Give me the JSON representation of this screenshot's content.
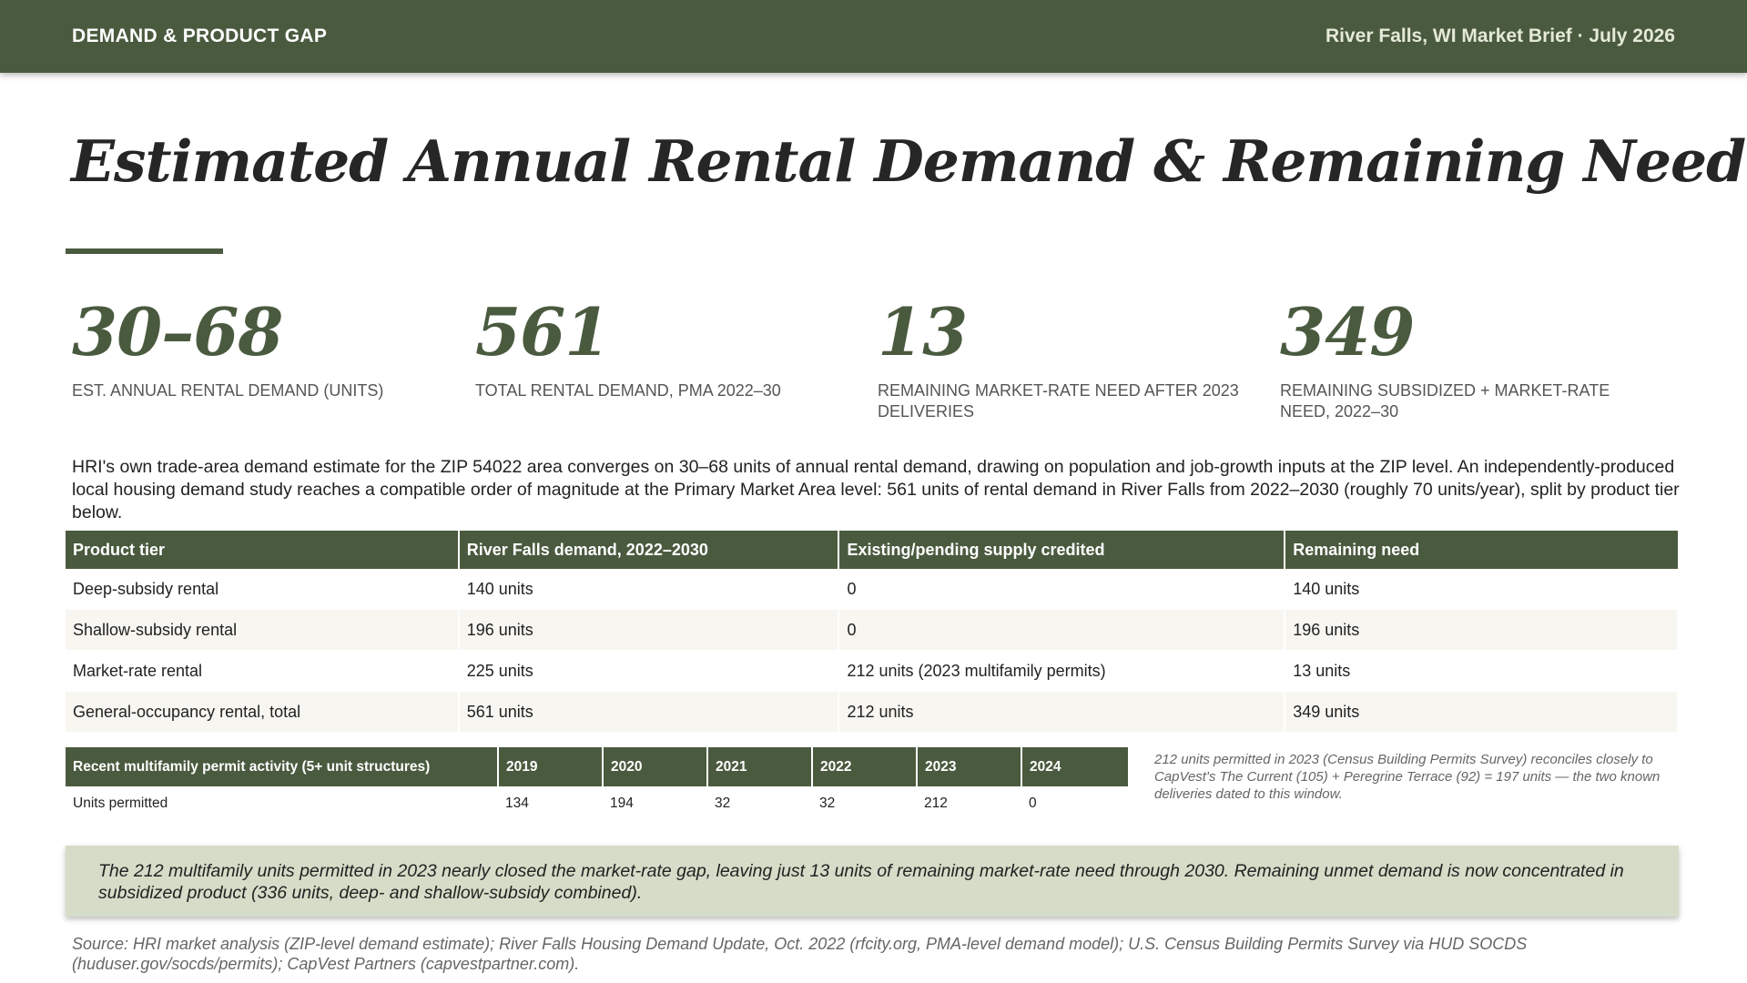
{
  "header": {
    "section": "DEMAND & PRODUCT GAP",
    "brief": "River Falls, WI Market Brief · July 2026"
  },
  "title": "Estimated Annual Rental Demand & Remaining Need",
  "kpis": [
    {
      "value": "30–68",
      "label": "EST. ANNUAL RENTAL DEMAND (UNITS)"
    },
    {
      "value": "561",
      "label": "TOTAL RENTAL DEMAND, PMA 2022–30"
    },
    {
      "value": "13",
      "label": "REMAINING MARKET-RATE NEED AFTER 2023 DELIVERIES"
    },
    {
      "value": "349",
      "label": "REMAINING SUBSIDIZED + MARKET-RATE NEED, 2022–30"
    }
  ],
  "intro": "HRI's own trade-area demand estimate for the ZIP 54022 area converges on 30–68 units of annual rental demand, drawing on population and job-growth inputs at the ZIP level. An independently-produced local housing demand study reaches a compatible order of magnitude at the Primary Market Area level: 561 units of rental demand in River Falls from 2022–2030 (roughly 70 units/year), split by product tier below.",
  "demand_table": {
    "headers": [
      "Product tier",
      "River Falls demand, 2022–2030",
      "Existing/pending supply credited",
      "Remaining need"
    ],
    "rows": [
      [
        "Deep-subsidy rental",
        "140 units",
        "0",
        "140 units"
      ],
      [
        "Shallow-subsidy rental",
        "196 units",
        "0",
        "196 units"
      ],
      [
        "Market-rate rental",
        "225 units",
        "212 units (2023 multifamily permits)",
        "13 units"
      ],
      [
        "General-occupancy rental, total",
        "561 units",
        "212 units",
        "349 units"
      ]
    ]
  },
  "permit_table": {
    "headers": [
      "Recent multifamily permit activity (5+ unit structures)",
      "2019",
      "2020",
      "2021",
      "2022",
      "2023",
      "2024"
    ],
    "row": [
      "Units permitted",
      "134",
      "194",
      "32",
      "32",
      "212",
      "0"
    ]
  },
  "permit_note": "212 units permitted in 2023 (Census Building Permits Survey) reconciles closely to CapVest's The Current (105) + Peregrine Terrace (92) = 197 units — the two known deliveries dated to this window.",
  "callout": "The 212 multifamily units permitted in 2023 nearly closed the market-rate gap, leaving just 13 units of remaining market-rate need through 2030. Remaining unmet demand is now concentrated in subsidized product (336 units, deep- and shallow-subsidy combined).",
  "source": "Source: HRI market analysis (ZIP-level demand estimate); River Falls Housing Demand Update, Oct. 2022 (rfcity.org, PMA-level demand model); U.S. Census Building Permits Survey via HUD SOCDS (huduser.gov/socds/permits); CapVest Partners (capvestpartner.com).",
  "colors": {
    "brand_green": "#4a5a3f",
    "callout_bg": "#d5ddc8"
  }
}
